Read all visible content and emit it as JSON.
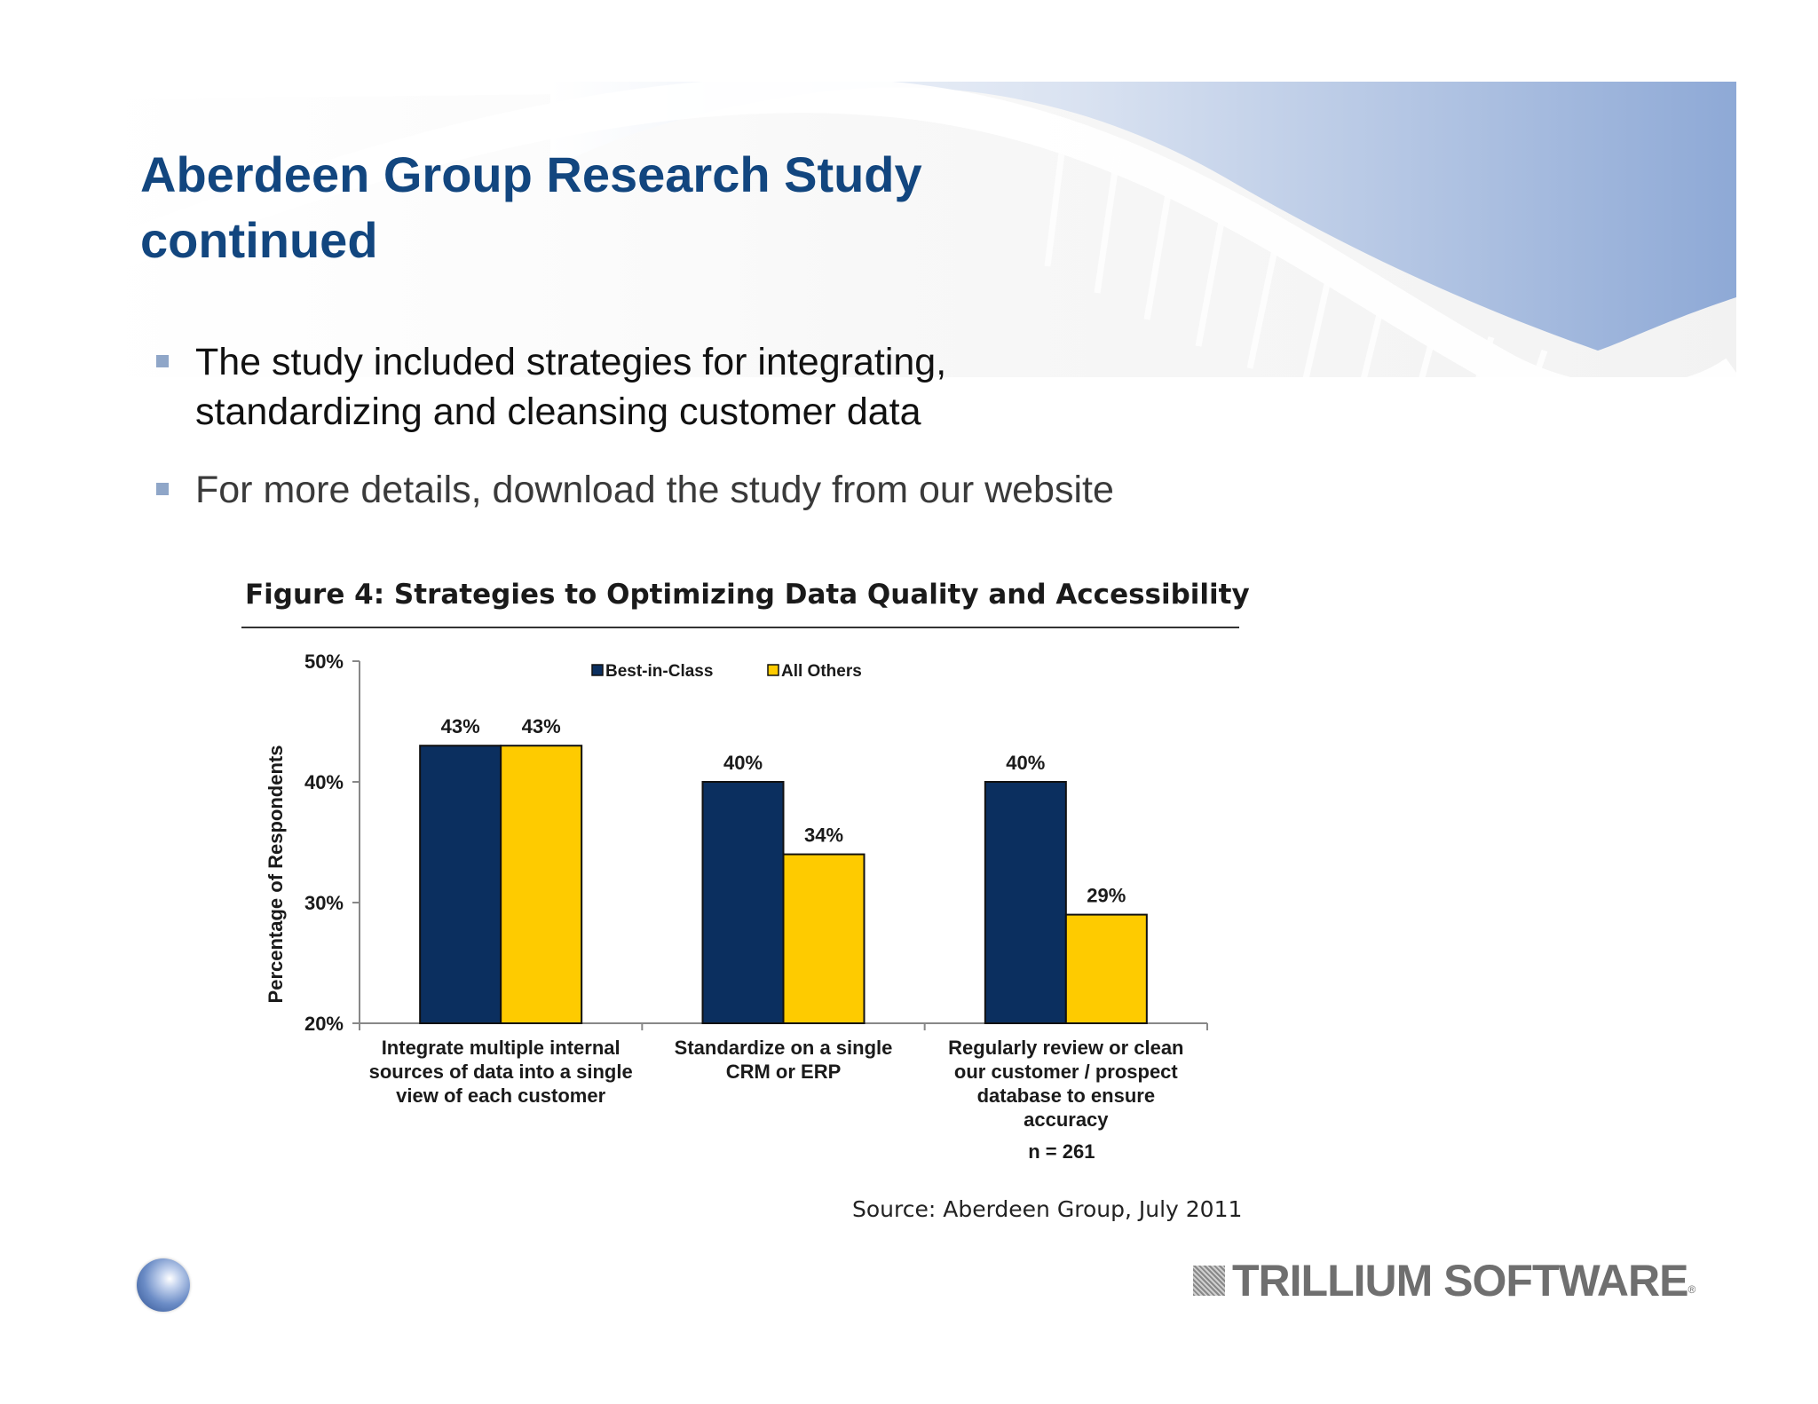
{
  "slide": {
    "title_lines": [
      "Aberdeen Group Research Study",
      "continued"
    ],
    "bullets": [
      {
        "lines": [
          "The study included strategies for integrating,",
          "standardizing and cleansing customer data"
        ]
      },
      {
        "lines": [
          "For more details, download the study from our website"
        ]
      }
    ]
  },
  "figure": {
    "title": "Figure 4: Strategies to Optimizing Data Quality and Accessibility",
    "source": "Source: Aberdeen Group, July 2011"
  },
  "chart_data": {
    "type": "bar",
    "categories": [
      [
        "Integrate multiple internal",
        "sources of data into a single",
        "view of each customer"
      ],
      [
        "Standardize on a single",
        "CRM or ERP"
      ],
      [
        "Regularly review or clean",
        "our customer / prospect",
        "database to ensure",
        "accuracy"
      ]
    ],
    "series": [
      {
        "name": "Best-in-Class",
        "values": [
          43,
          40,
          40
        ],
        "labels": [
          "43%",
          "40%",
          "40%"
        ],
        "color": "#0b2f5f"
      },
      {
        "name": "All Others",
        "values": [
          43,
          34,
          29
        ],
        "labels": [
          "43%",
          "34%",
          "29%"
        ],
        "color": "#fecb00"
      }
    ],
    "ylabel": "Percentage of Respondents",
    "ylim": [
      20,
      50
    ],
    "yticks": [
      20,
      30,
      40,
      50
    ],
    "ytick_labels": [
      "20%",
      "30%",
      "40%",
      "50%"
    ],
    "legend_position": "top-center",
    "grid": false,
    "note": "n = 261"
  },
  "branding": {
    "company_logo_text": "TRILLIUM SOFTWARE",
    "registered_mark": "®",
    "accent_color": "#12467f",
    "orb_icon": "orb-icon"
  }
}
